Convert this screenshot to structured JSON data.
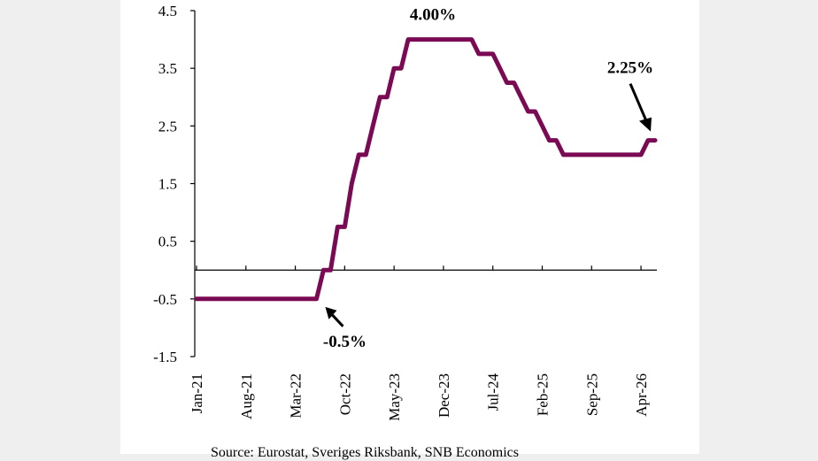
{
  "chart_data": {
    "type": "line",
    "title": "",
    "xlabel": "",
    "ylabel": "",
    "ylim": [
      -1.5,
      4.5
    ],
    "y_ticks": [
      "4.5",
      "3.5",
      "2.5",
      "1.5",
      "0.5",
      "-0.5",
      "-1.5"
    ],
    "x_tick_labels": [
      "Jan-21",
      "Aug-21",
      "Mar-22",
      "Oct-22",
      "May-23",
      "Dec-23",
      "Jul-24",
      "Feb-25",
      "Sep-25",
      "Apr-26"
    ],
    "grid": false,
    "legend": "none",
    "line_color": "#7b0a54",
    "x": [
      "2021-01",
      "2021-02",
      "2021-03",
      "2021-04",
      "2021-05",
      "2021-06",
      "2021-07",
      "2021-08",
      "2021-09",
      "2021-10",
      "2021-11",
      "2021-12",
      "2022-01",
      "2022-02",
      "2022-03",
      "2022-04",
      "2022-05",
      "2022-06",
      "2022-07",
      "2022-08",
      "2022-09",
      "2022-10",
      "2022-11",
      "2022-12",
      "2023-01",
      "2023-02",
      "2023-03",
      "2023-04",
      "2023-05",
      "2023-06",
      "2023-07",
      "2023-08",
      "2023-09",
      "2023-10",
      "2023-11",
      "2023-12",
      "2024-01",
      "2024-02",
      "2024-03",
      "2024-04",
      "2024-05",
      "2024-06",
      "2024-07",
      "2024-08",
      "2024-09",
      "2024-10",
      "2024-11",
      "2024-12",
      "2025-01",
      "2025-02",
      "2025-03",
      "2025-04",
      "2025-05",
      "2025-06",
      "2025-07",
      "2025-08",
      "2025-09",
      "2025-10",
      "2025-11",
      "2025-12",
      "2026-01",
      "2026-02",
      "2026-03",
      "2026-04",
      "2026-05",
      "2026-06"
    ],
    "series": [
      {
        "values": [
          -0.5,
          -0.5,
          -0.5,
          -0.5,
          -0.5,
          -0.5,
          -0.5,
          -0.5,
          -0.5,
          -0.5,
          -0.5,
          -0.5,
          -0.5,
          -0.5,
          -0.5,
          -0.5,
          -0.5,
          -0.5,
          0,
          0,
          0.75,
          0.75,
          1.5,
          2.0,
          2.0,
          2.5,
          3.0,
          3.0,
          3.5,
          3.5,
          4.0,
          4.0,
          4.0,
          4.0,
          4.0,
          4.0,
          4.0,
          4.0,
          4.0,
          4.0,
          3.75,
          3.75,
          3.75,
          3.5,
          3.25,
          3.25,
          3.0,
          2.75,
          2.75,
          2.5,
          2.25,
          2.25,
          2.0,
          2.0,
          2.0,
          2.0,
          2.0,
          2.0,
          2.0,
          2.0,
          2.0,
          2.0,
          2.0,
          2.0,
          2.25,
          2.25
        ]
      }
    ],
    "annotations": [
      {
        "text": "4.00%",
        "x": "2023-12",
        "y": 4.0
      },
      {
        "text": "2.25%",
        "x": "2026-06",
        "y": 2.25
      },
      {
        "text": "-0.5%",
        "x": "2022-07",
        "y": -0.5
      }
    ]
  },
  "source_text": "Source: Eurostat, Sveriges Riksbank, SNB Economics"
}
